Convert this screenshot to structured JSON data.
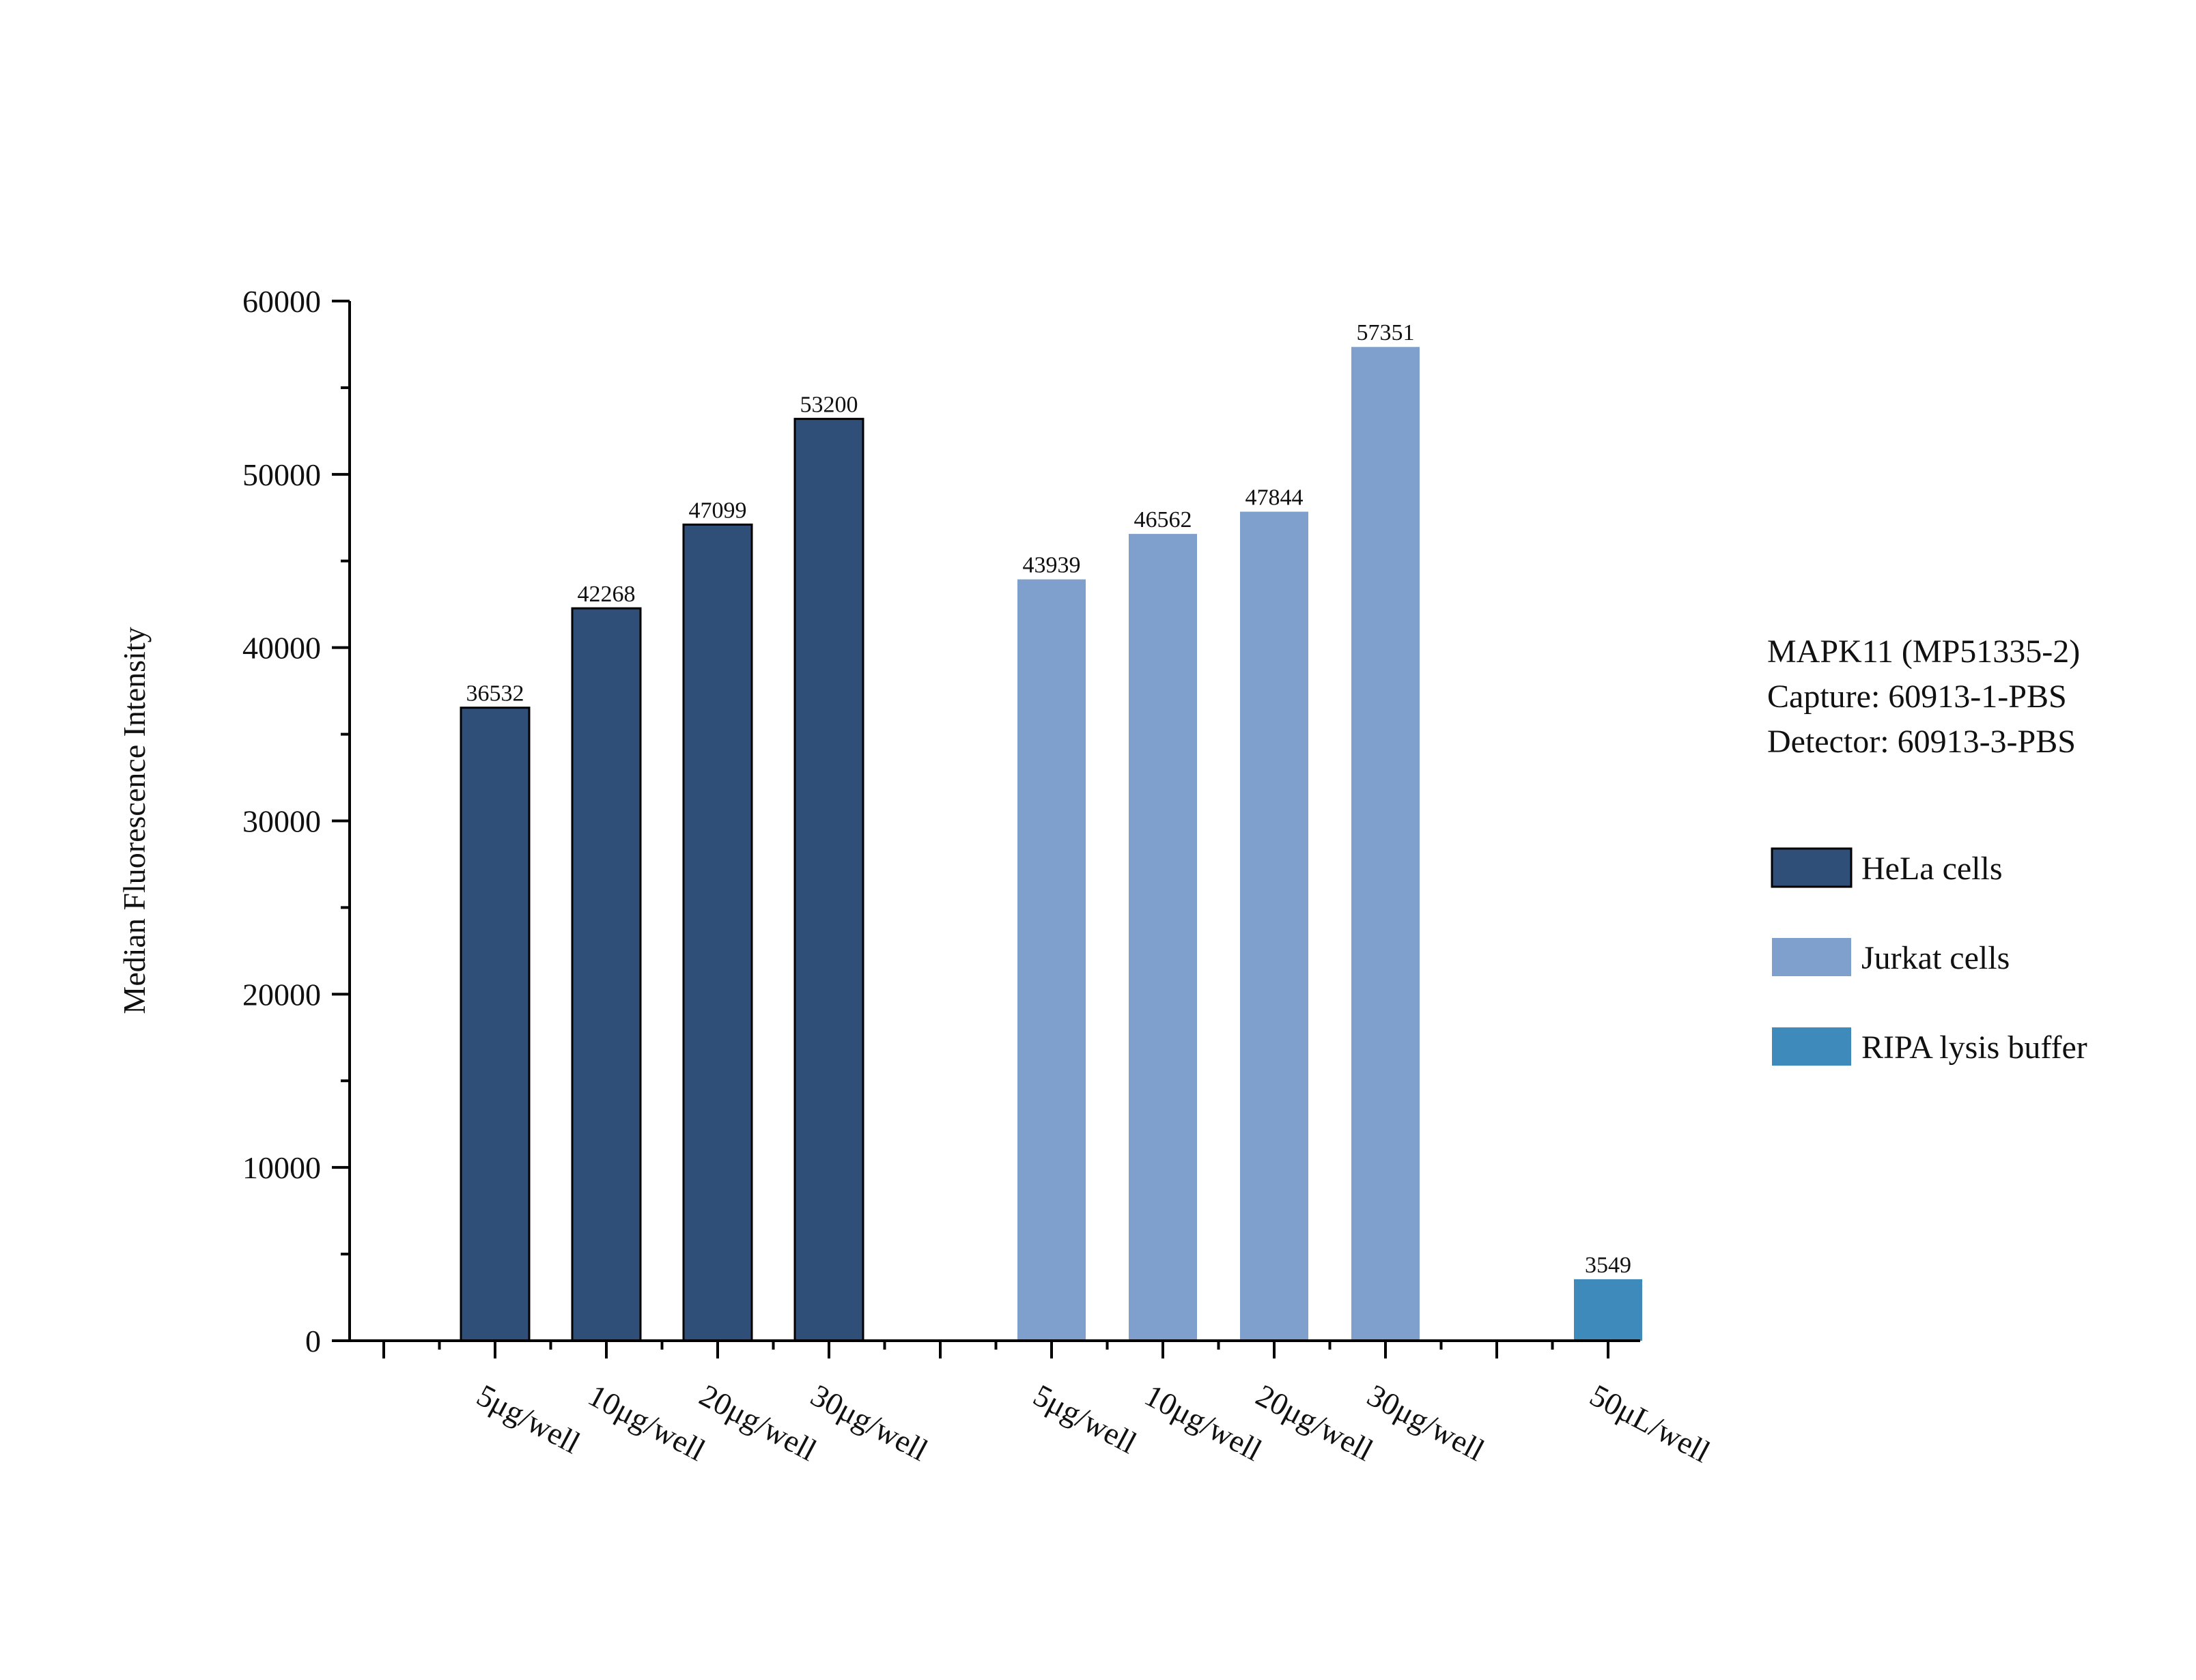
{
  "chart_data": {
    "type": "bar",
    "title": "",
    "xlabel": "",
    "ylabel": "Median Fluorescence Intensity",
    "ylim": [
      0,
      60000
    ],
    "y_ticks": [
      0,
      10000,
      20000,
      30000,
      40000,
      50000,
      60000
    ],
    "y_minor_step": 5000,
    "grid": false,
    "legend_position": "right",
    "annotation": {
      "lines": [
        "MAPK11 (MP51335-2)",
        "Capture: 60913-1-PBS",
        "Detector: 60913-3-PBS"
      ]
    },
    "slot_count": 11,
    "series": [
      {
        "name": "HeLa cells",
        "color": "#2f4e78",
        "outlined": true,
        "points": [
          {
            "slot": 1,
            "label": "5μg/well",
            "value": 36532
          },
          {
            "slot": 2,
            "label": "10μg/well",
            "value": 42268
          },
          {
            "slot": 3,
            "label": "20μg/well",
            "value": 47099
          },
          {
            "slot": 4,
            "label": "30μg/well",
            "value": 53200
          }
        ]
      },
      {
        "name": "Jurkat cells",
        "color": "#7f9fcc",
        "outlined": false,
        "points": [
          {
            "slot": 6,
            "label": "5μg/well",
            "value": 43939
          },
          {
            "slot": 7,
            "label": "10μg/well",
            "value": 46562
          },
          {
            "slot": 8,
            "label": "20μg/well",
            "value": 47844
          },
          {
            "slot": 9,
            "label": "30μg/well",
            "value": 57351
          }
        ]
      },
      {
        "name": "RIPA lysis buffer",
        "color": "#3e8abb",
        "outlined": false,
        "points": [
          {
            "slot": 11,
            "label": "50μL/well",
            "value": 3549
          }
        ]
      }
    ]
  }
}
